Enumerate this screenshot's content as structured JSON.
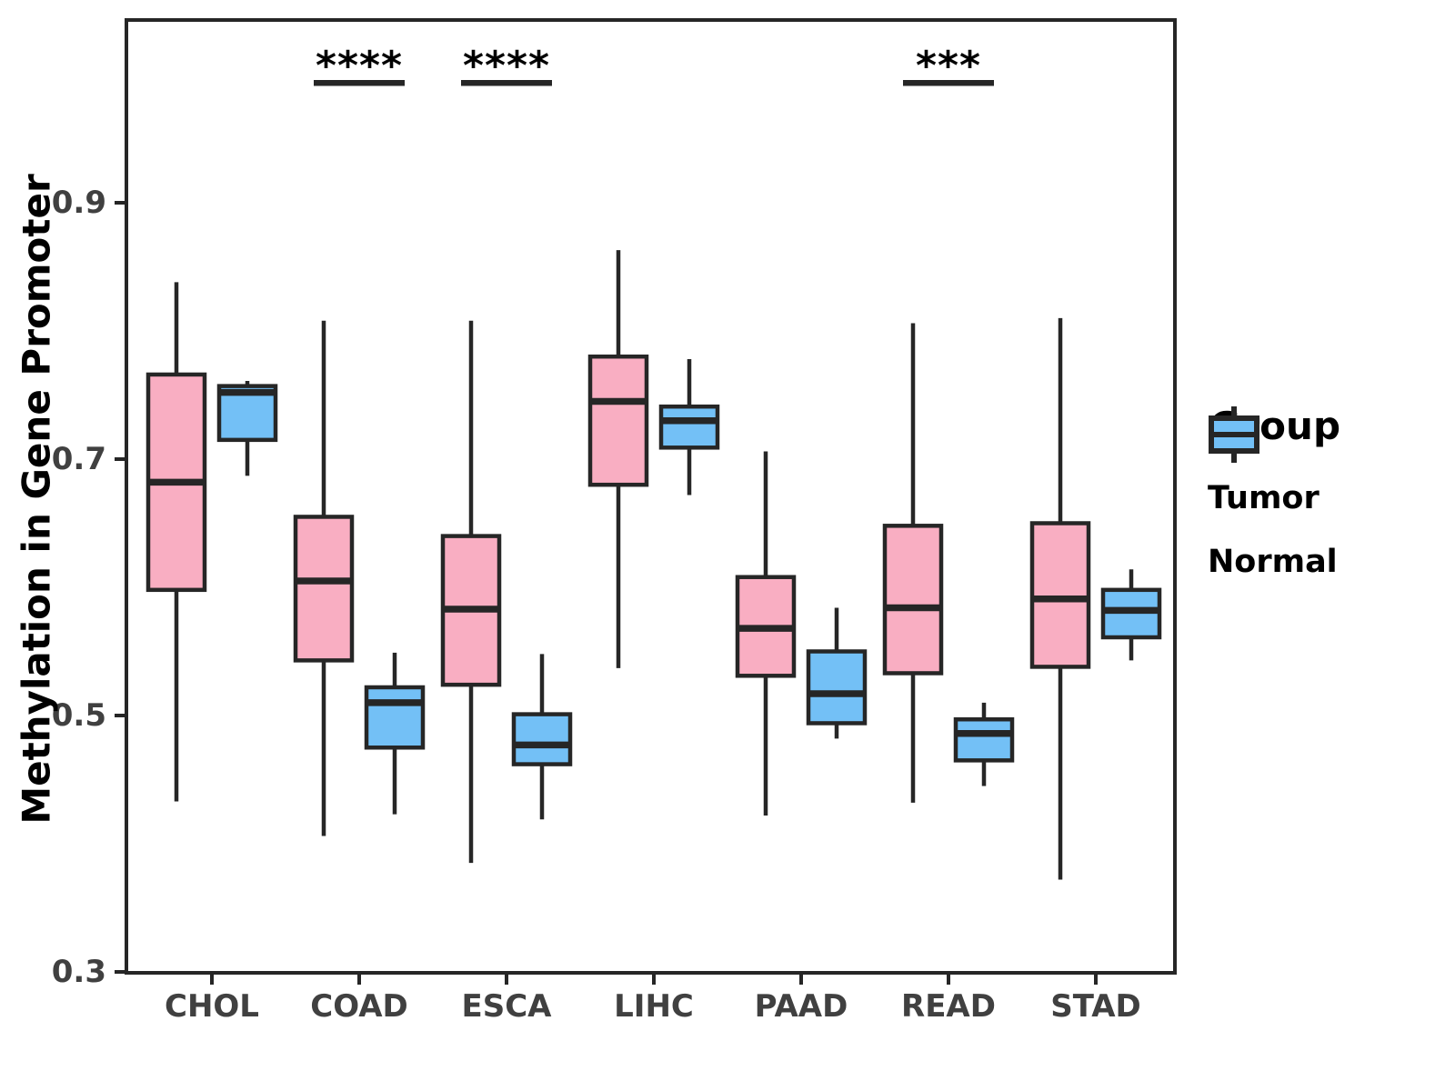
{
  "figure": {
    "background": "#FFFFFF"
  },
  "legend": {
    "title": "Group",
    "entries": [
      {
        "label": "Tumor",
        "color": "#F9AEC2"
      },
      {
        "label": "Normal",
        "color": "#73C0F6"
      }
    ]
  },
  "chart_data": {
    "type": "boxplot",
    "title": "",
    "xlabel": "",
    "ylabel": "Methylation in Gene Promoter",
    "grid": false,
    "legend_position": "right",
    "ylim": [
      0.3,
      1.04
    ],
    "y_ticks": [
      0.3,
      0.5,
      0.7,
      0.9
    ],
    "categories": [
      "CHOL",
      "COAD",
      "ESCA",
      "LIHC",
      "PAAD",
      "READ",
      "STAD"
    ],
    "series": [
      {
        "name": "Tumor",
        "color": "#F9AEC2",
        "stats": [
          {
            "min": 0.433,
            "q1": 0.598,
            "median": 0.682,
            "q3": 0.766,
            "max": 0.838
          },
          {
            "min": 0.406,
            "q1": 0.543,
            "median": 0.605,
            "q3": 0.655,
            "max": 0.808
          },
          {
            "min": 0.385,
            "q1": 0.524,
            "median": 0.583,
            "q3": 0.64,
            "max": 0.808
          },
          {
            "min": 0.537,
            "q1": 0.68,
            "median": 0.745,
            "q3": 0.78,
            "max": 0.863
          },
          {
            "min": 0.422,
            "q1": 0.531,
            "median": 0.568,
            "q3": 0.608,
            "max": 0.706
          },
          {
            "min": 0.432,
            "q1": 0.533,
            "median": 0.584,
            "q3": 0.648,
            "max": 0.806
          },
          {
            "min": 0.372,
            "q1": 0.538,
            "median": 0.591,
            "q3": 0.65,
            "max": 0.81
          }
        ]
      },
      {
        "name": "Normal",
        "color": "#73C0F6",
        "stats": [
          {
            "min": 0.687,
            "q1": 0.715,
            "median": 0.752,
            "q3": 0.757,
            "max": 0.761
          },
          {
            "min": 0.423,
            "q1": 0.475,
            "median": 0.51,
            "q3": 0.522,
            "max": 0.549
          },
          {
            "min": 0.419,
            "q1": 0.462,
            "median": 0.477,
            "q3": 0.501,
            "max": 0.548
          },
          {
            "min": 0.672,
            "q1": 0.709,
            "median": 0.73,
            "q3": 0.741,
            "max": 0.778
          },
          {
            "min": 0.482,
            "q1": 0.494,
            "median": 0.517,
            "q3": 0.55,
            "max": 0.584
          },
          {
            "min": 0.445,
            "q1": 0.465,
            "median": 0.486,
            "q3": 0.497,
            "max": 0.51
          },
          {
            "min": 0.543,
            "q1": 0.561,
            "median": 0.582,
            "q3": 0.598,
            "max": 0.614
          }
        ]
      }
    ],
    "annotations": [
      {
        "category": "COAD",
        "label": "****"
      },
      {
        "category": "ESCA",
        "label": "****"
      },
      {
        "category": "READ",
        "label": "***"
      }
    ],
    "style": {
      "line_color": "#262626",
      "tick_label_color": "#404040"
    }
  }
}
